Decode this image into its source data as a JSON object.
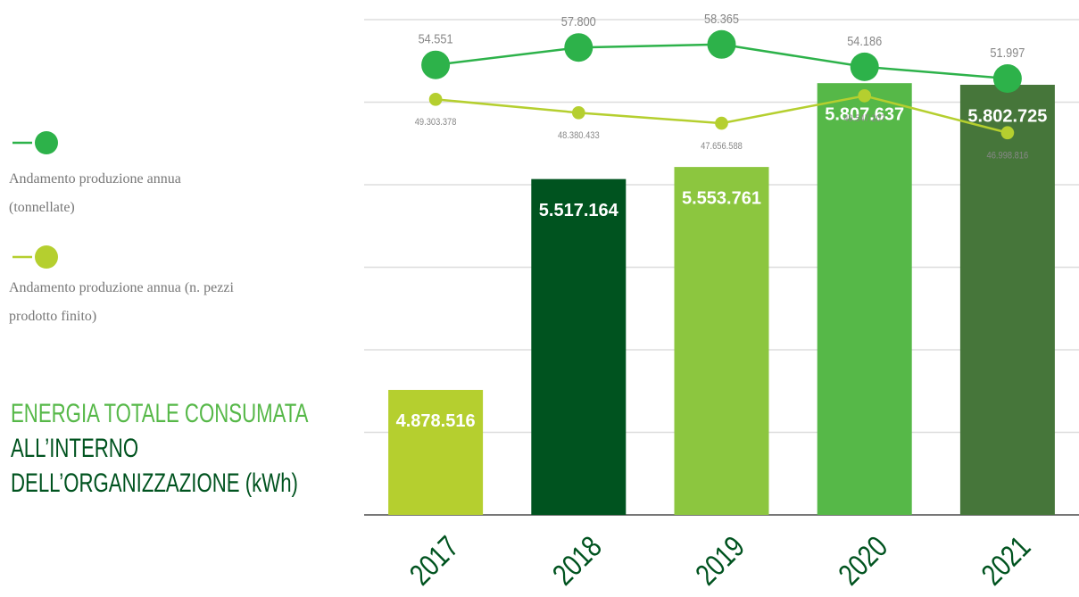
{
  "chart_data": {
    "type": "bar",
    "title_parts": [
      "ENERGIA TOTALE CONSUMATA",
      "ALL’INTERNO DELL’ORGANIZZAZIONE (kWh)"
    ],
    "categories": [
      "2017",
      "2018",
      "2019",
      "2020",
      "2021"
    ],
    "values": [
      4878516,
      5517164,
      5553761,
      5807637,
      5802725
    ],
    "value_labels": [
      "4.878.516",
      "5.517.164",
      "5.553.761",
      "5.807.637",
      "5.802.725"
    ],
    "colors": [
      "#b5cf2f",
      "#00531f",
      "#8cc63f",
      "#56b848",
      "#46763a"
    ],
    "ylim": [
      4500000,
      6000000
    ],
    "yticks": [
      4500000,
      4750000,
      5000000,
      5250000,
      5500000,
      5750000,
      6000000
    ],
    "grid": true,
    "lines": [
      {
        "type": "line",
        "name": "Andamento produzione annua (tonnellate)",
        "color": "#2db24a",
        "values": [
          54551,
          57800,
          58365,
          54186,
          51997
        ],
        "value_labels": [
          "54.551",
          "57.800",
          "58.365",
          "54.186",
          "51.997"
        ],
        "ylim": [
          50000,
          60000
        ]
      },
      {
        "type": "line",
        "name": "Andamento produzione annua (n. pezzi prodotto finito)",
        "color": "#b5cf2f",
        "values": [
          49303378,
          48380433,
          47656588,
          49547207,
          46998816
        ],
        "value_labels": [
          "49.303.378",
          "48.380.433",
          "47.656.588",
          "49.547.207",
          "46.998.816"
        ],
        "ylim": [
          46000000,
          50000000
        ]
      }
    ]
  }
}
